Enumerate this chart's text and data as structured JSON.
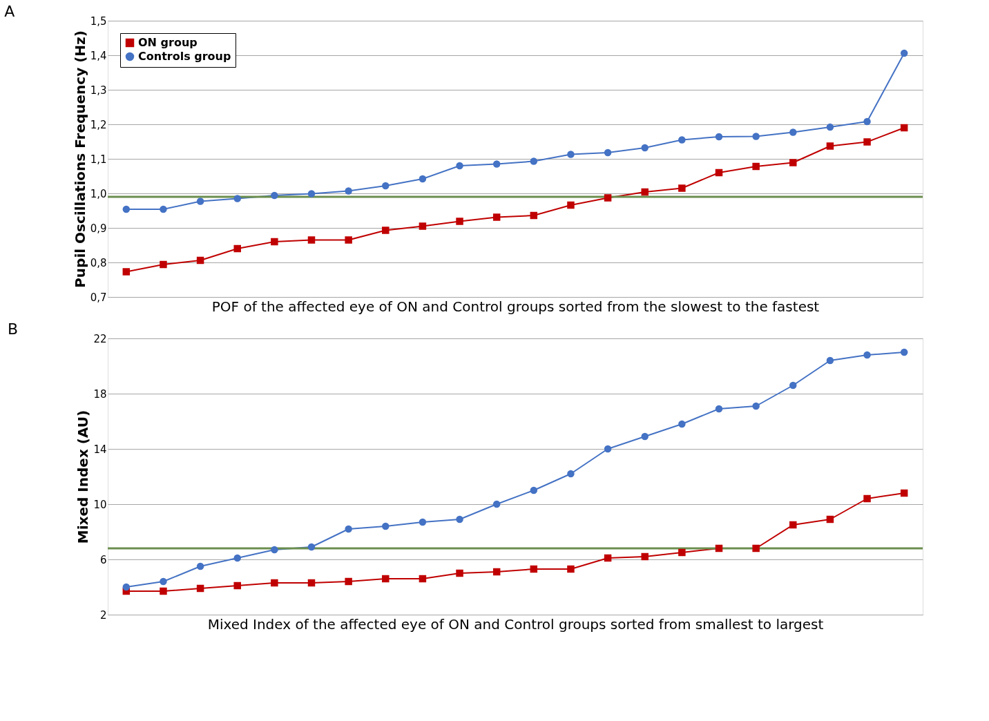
{
  "chart_data": [
    {
      "type": "line",
      "title": "A",
      "xlabel": "POF of the affected eye of ON and Control groups sorted from the slowest to the fastest",
      "ylabel": "Pupil Oscillations Frequency  (Hz)",
      "categories": [
        null,
        null,
        null,
        null,
        null,
        null,
        null,
        null,
        null,
        null,
        null,
        null,
        null,
        null,
        null,
        null,
        null,
        null,
        null,
        null,
        null,
        null
      ],
      "series": [
        {
          "name": "ON group",
          "color": "#c00000",
          "marker": "square",
          "values": [
            0.773,
            0.794,
            0.806,
            0.84,
            0.86,
            0.865,
            0.865,
            0.893,
            0.905,
            0.919,
            0.931,
            0.936,
            0.966,
            0.987,
            1.004,
            1.015,
            1.06,
            1.078,
            1.089,
            1.137,
            1.149,
            1.19
          ]
        },
        {
          "name": "Controls group",
          "color": "#4472c4",
          "marker": "circle",
          "values": [
            0.954,
            0.954,
            0.977,
            0.985,
            0.994,
            0.999,
            1.007,
            1.022,
            1.042,
            1.08,
            1.085,
            1.093,
            1.113,
            1.118,
            1.132,
            1.155,
            1.164,
            1.165,
            1.177,
            1.192,
            1.208,
            1.406
          ]
        }
      ],
      "ylim": [
        0.7,
        1.5
      ],
      "yticks": [
        {
          "value": 0.7,
          "label": "0,7"
        },
        {
          "value": 0.8,
          "label": "0,8"
        },
        {
          "value": 0.9,
          "label": "0,9"
        },
        {
          "value": 1.0,
          "label": "1,0"
        },
        {
          "value": 1.1,
          "label": "1,1"
        },
        {
          "value": 1.2,
          "label": "1,2"
        },
        {
          "value": 1.3,
          "label": "1,3"
        },
        {
          "value": 1.4,
          "label": "1,4"
        },
        {
          "value": 1.5,
          "label": "1,5"
        }
      ],
      "ref_lines": [
        {
          "axis": "y",
          "value": 0.99,
          "color": "#6b8e4e"
        }
      ],
      "grid": "y",
      "legend": "top left",
      "tick_labels": "y"
    },
    {
      "type": "line",
      "title": "B",
      "xlabel": "Mixed Index of the affected eye of ON and Control groups sorted from smallest to largest",
      "ylabel": "Mixed Index (AU)",
      "categories": [
        null,
        null,
        null,
        null,
        null,
        null,
        null,
        null,
        null,
        null,
        null,
        null,
        null,
        null,
        null,
        null,
        null,
        null,
        null,
        null,
        null,
        null
      ],
      "series": [
        {
          "color": "#c00000",
          "marker": "square",
          "values": [
            3.7,
            3.7,
            3.9,
            4.1,
            4.3,
            4.3,
            4.4,
            4.6,
            4.6,
            5.0,
            5.1,
            5.3,
            5.3,
            6.1,
            6.2,
            6.5,
            6.8,
            6.8,
            8.5,
            8.9,
            10.4,
            10.8
          ]
        },
        {
          "color": "#4472c4",
          "marker": "circle",
          "values": [
            4.0,
            4.4,
            5.5,
            6.1,
            6.7,
            6.9,
            8.2,
            8.4,
            8.7,
            8.9,
            10.0,
            11.0,
            12.2,
            14.0,
            14.9,
            15.8,
            16.9,
            17.1,
            18.6,
            20.4,
            20.8,
            21.0
          ]
        }
      ],
      "ylim": [
        2,
        22
      ],
      "yticks": [
        2,
        6,
        10,
        14,
        18,
        22
      ],
      "ref_lines": [
        {
          "axis": "y",
          "value": 6.8,
          "color": "#6b8e4e"
        }
      ],
      "grid": "y",
      "legend": false,
      "tick_labels": "y"
    }
  ]
}
